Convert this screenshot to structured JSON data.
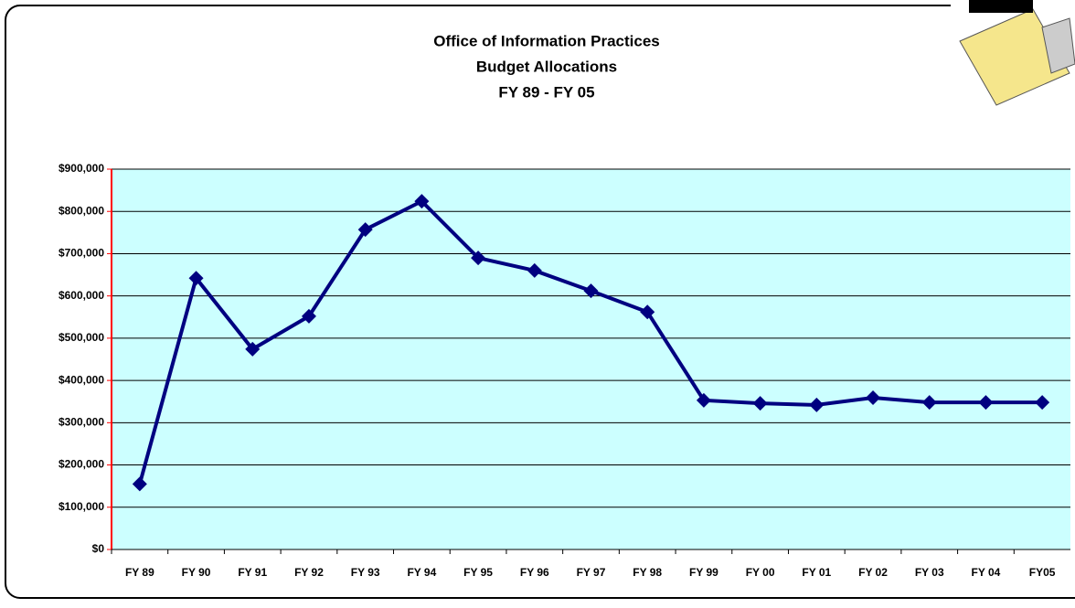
{
  "chart_data": {
    "type": "line",
    "title": [
      "Office of Information Practices",
      "Budget Allocations",
      "FY 89 - FY 05"
    ],
    "categories": [
      "FY 89",
      "FY 90",
      "FY 91",
      "FY 92",
      "FY 93",
      "FY 94",
      "FY 95",
      "FY 96",
      "FY 97",
      "FY 98",
      "FY 99",
      "FY 00",
      "FY 01",
      "FY 02",
      "FY 03",
      "FY 04",
      "FY05"
    ],
    "series": [
      {
        "color": "#000080",
        "values": [
          155000,
          642000,
          474000,
          552000,
          757000,
          824000,
          690000,
          660000,
          612000,
          562000,
          353000,
          346000,
          342000,
          359000,
          348000,
          348000,
          348000
        ]
      }
    ],
    "ylim": [
      0,
      900000
    ],
    "yticks": [
      {
        "value": 0,
        "label": "$0"
      },
      {
        "value": 100000,
        "label": "$100,000"
      },
      {
        "value": 200000,
        "label": "$200,000"
      },
      {
        "value": 300000,
        "label": "$300,000"
      },
      {
        "value": 400000,
        "label": "$400,000"
      },
      {
        "value": 500000,
        "label": "$500,000"
      },
      {
        "value": 600000,
        "label": "$600,000"
      },
      {
        "value": 700000,
        "label": "$700,000"
      },
      {
        "value": 800000,
        "label": "$800,000"
      },
      {
        "value": 900000,
        "label": "$900,000"
      }
    ],
    "grid": true,
    "plot_background": "#ccffff"
  }
}
